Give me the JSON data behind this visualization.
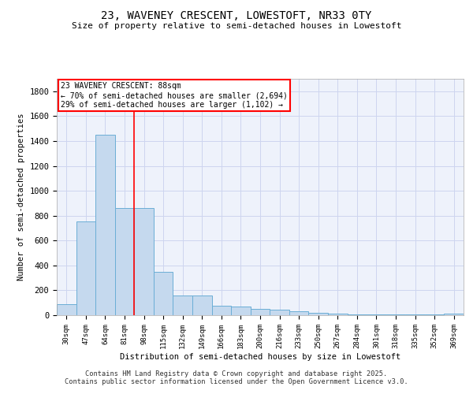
{
  "title": "23, WAVENEY CRESCENT, LOWESTOFT, NR33 0TY",
  "subtitle": "Size of property relative to semi-detached houses in Lowestoft",
  "xlabel": "Distribution of semi-detached houses by size in Lowestoft",
  "ylabel": "Number of semi-detached properties",
  "bar_values": [
    90,
    755,
    1450,
    860,
    860,
    350,
    160,
    160,
    75,
    70,
    50,
    45,
    30,
    20,
    12,
    8,
    8,
    8,
    8,
    4,
    10
  ],
  "bin_labels": [
    "30sqm",
    "47sqm",
    "64sqm",
    "81sqm",
    "98sqm",
    "115sqm",
    "132sqm",
    "149sqm",
    "166sqm",
    "183sqm",
    "200sqm",
    "216sqm",
    "233sqm",
    "250sqm",
    "267sqm",
    "284sqm",
    "301sqm",
    "318sqm",
    "335sqm",
    "352sqm",
    "369sqm"
  ],
  "bar_color": "#c5d9ee",
  "bar_edge_color": "#6baed6",
  "ylim": [
    0,
    1900
  ],
  "yticks": [
    0,
    200,
    400,
    600,
    800,
    1000,
    1200,
    1400,
    1600,
    1800
  ],
  "red_line_x": 3.5,
  "annotation_title": "23 WAVENEY CRESCENT: 88sqm",
  "annotation_line1": "← 70% of semi-detached houses are smaller (2,694)",
  "annotation_line2": "29% of semi-detached houses are larger (1,102) →",
  "footer_line1": "Contains HM Land Registry data © Crown copyright and database right 2025.",
  "footer_line2": "Contains public sector information licensed under the Open Government Licence v3.0.",
  "bg_color": "#eef2fb",
  "grid_color": "#cdd5ef"
}
